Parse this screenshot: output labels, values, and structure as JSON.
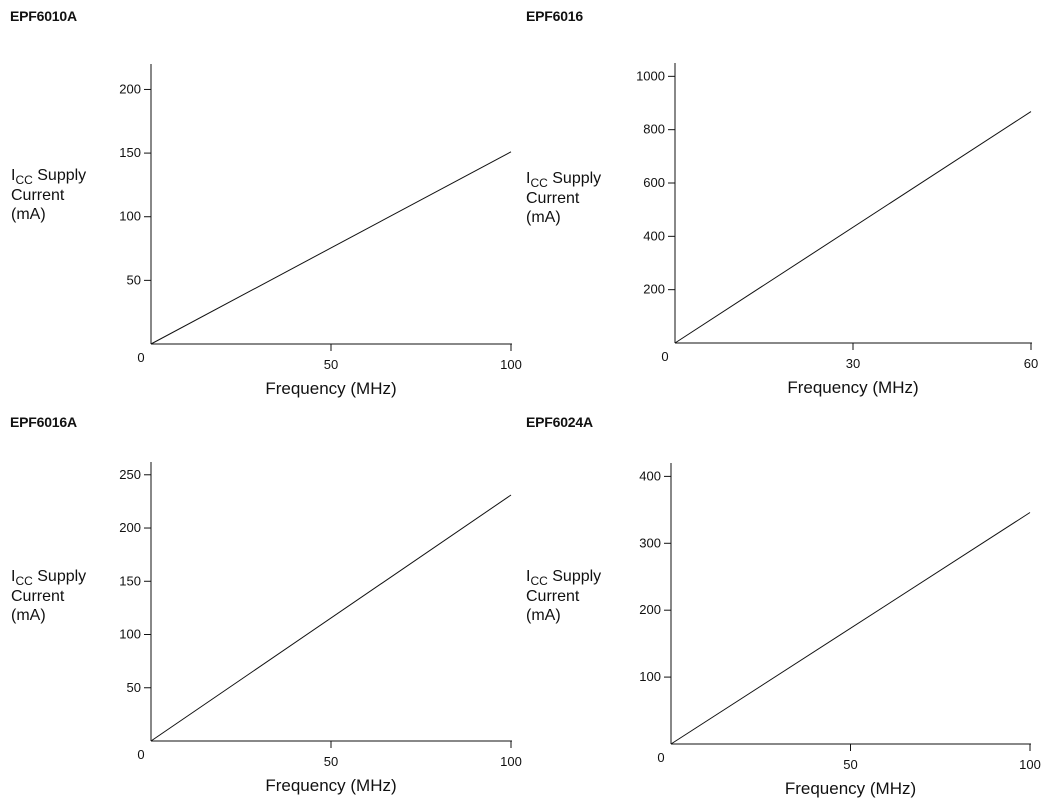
{
  "chart_data": [
    {
      "type": "line",
      "title": "EPF6010A",
      "ylabel": {
        "prefix": "I",
        "subscript": "CC",
        "line1_rest": " Supply",
        "line2": "Current",
        "line3": "(mA)"
      },
      "xlabel": "Frequency (MHz)",
      "xlim": [
        0,
        100
      ],
      "ylim": [
        0,
        220
      ],
      "xticks": [
        0,
        50,
        100
      ],
      "yticks": [
        50,
        100,
        150,
        200
      ],
      "series": [
        {
          "x": [
            0,
            100
          ],
          "y": [
            0,
            151
          ]
        }
      ]
    },
    {
      "type": "line",
      "title": "EPF6016",
      "ylabel": {
        "prefix": "I",
        "subscript": "CC",
        "line1_rest": " Supply",
        "line2": "Current",
        "line3": "(mA)"
      },
      "xlabel": "Frequency (MHz)",
      "xlim": [
        0,
        60
      ],
      "ylim": [
        0,
        1050
      ],
      "xticks": [
        0,
        30,
        60
      ],
      "yticks": [
        200,
        400,
        600,
        800,
        1000
      ],
      "series": [
        {
          "x": [
            0,
            60
          ],
          "y": [
            0,
            868
          ]
        }
      ]
    },
    {
      "type": "line",
      "title": "EPF6016A",
      "ylabel": {
        "prefix": "I",
        "subscript": "CC",
        "line1_rest": " Supply",
        "line2": "Current",
        "line3": "(mA)"
      },
      "xlabel": "Frequency (MHz)",
      "xlim": [
        0,
        100
      ],
      "ylim": [
        0,
        262
      ],
      "xticks": [
        0,
        50,
        100
      ],
      "yticks": [
        50,
        100,
        150,
        200,
        250
      ],
      "series": [
        {
          "x": [
            0,
            100
          ],
          "y": [
            0,
            231
          ]
        }
      ]
    },
    {
      "type": "line",
      "title": "EPF6024A",
      "ylabel": {
        "prefix": "I",
        "subscript": "CC",
        "line1_rest": " Supply",
        "line2": "Current",
        "line3": "(mA)"
      },
      "xlabel": "Frequency (MHz)",
      "xlim": [
        0,
        100
      ],
      "ylim": [
        0,
        420
      ],
      "xticks": [
        0,
        50,
        100
      ],
      "yticks": [
        100,
        200,
        300,
        400
      ],
      "series": [
        {
          "x": [
            0,
            100
          ],
          "y": [
            0,
            346
          ]
        }
      ]
    }
  ]
}
